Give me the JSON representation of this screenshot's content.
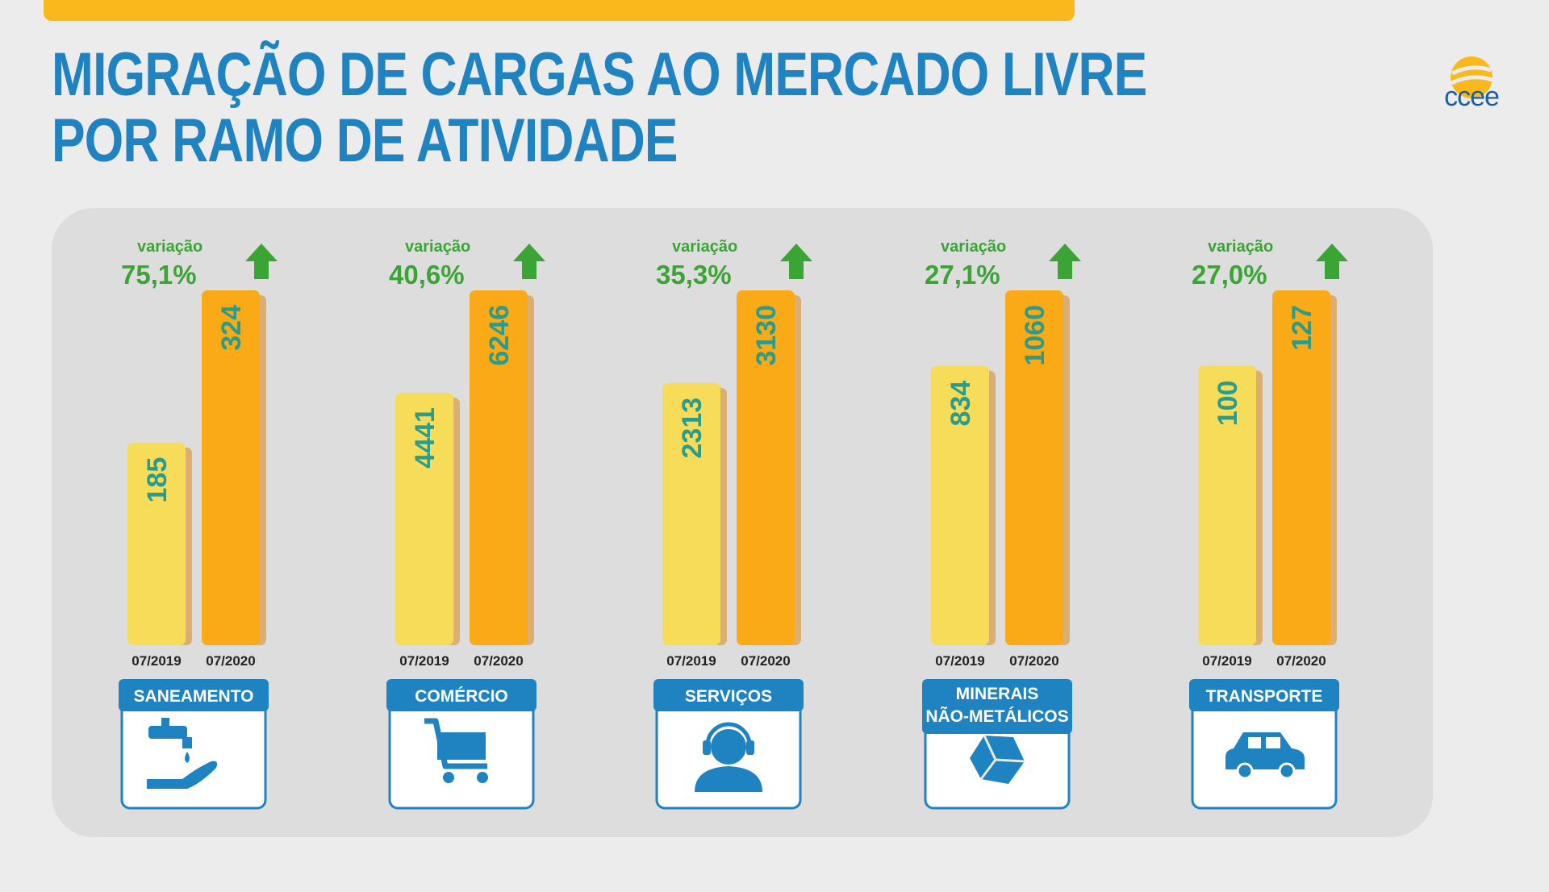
{
  "title": {
    "line1": "MIGRAÇÃO DE CARGAS AO MERCADO LIVRE",
    "line2": "POR RAMO DE ATIVIDADE"
  },
  "logo": {
    "text": "ccee",
    "icon": "ccee-sun-logo-icon"
  },
  "colors": {
    "title_blue": "#1f82c1",
    "bar_2019": "#f7dc5a",
    "bar_2020": "#fbaa17",
    "variation_green": "#3aa535",
    "value_teal": "#2b9b8c",
    "label_blue": "#1f82c1",
    "panel_gray": "#dddddd"
  },
  "chart_data": {
    "type": "bar",
    "title": "MIGRAÇÃO DE CARGAS AO MERCADO LIVRE POR RAMO DE ATIVIDADE",
    "categories": [
      "SANEAMENTO",
      "COMÉRCIO",
      "SERVIÇOS",
      "MINERAIS NÃO-METÁLICOS",
      "TRANSPORTE"
    ],
    "series": [
      {
        "name": "07/2019",
        "values": [
          185,
          4441,
          2313,
          834,
          100
        ]
      },
      {
        "name": "07/2020",
        "values": [
          324,
          6246,
          3130,
          1060,
          127
        ]
      }
    ],
    "variation_label": "variação",
    "variations": [
      "75,1%",
      "40,6%",
      "35,3%",
      "27,1%",
      "27,0%"
    ],
    "icons": [
      "faucet-hand-icon",
      "shopping-cart-icon",
      "headset-person-icon",
      "stone-icon",
      "car-icon"
    ],
    "grid": false,
    "legend": "none"
  }
}
